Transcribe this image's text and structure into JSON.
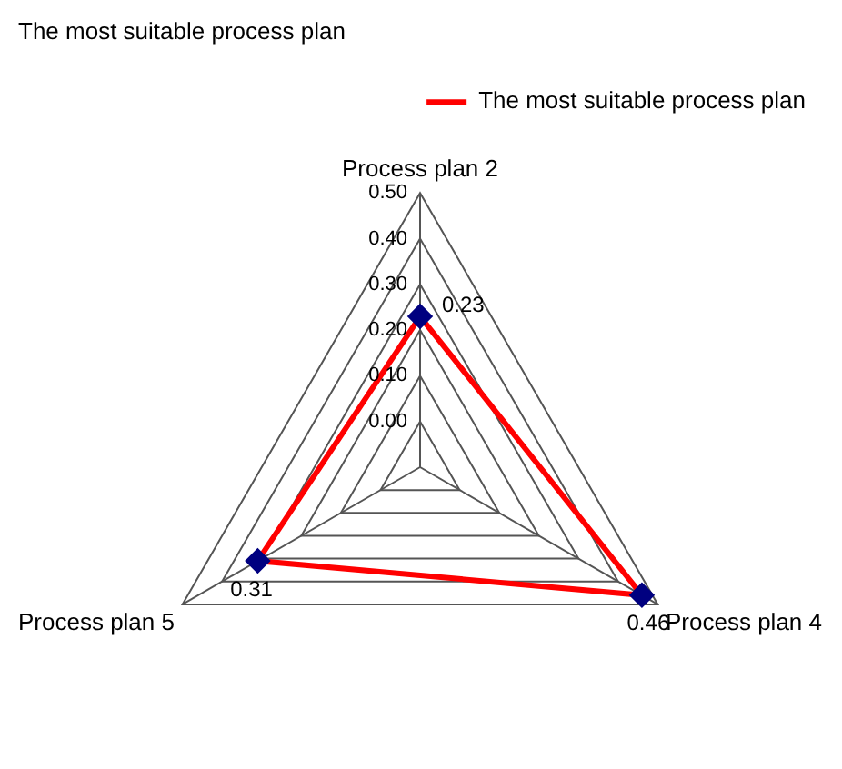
{
  "chart_data": {
    "type": "radar",
    "title": "The most suitable process plan",
    "categories": [
      "Process plan 2",
      "Process plan 4",
      "Process plan 5"
    ],
    "series": [
      {
        "name": "The most suitable process plan",
        "color": "#ff0000",
        "values": [
          0.23,
          0.46,
          0.31
        ]
      }
    ],
    "ylim": [
      -0.1,
      0.5
    ],
    "yticks": [
      {
        "value": 0,
        "label": "0.00"
      },
      {
        "value": 0.1,
        "label": "0.10"
      },
      {
        "value": 0.2,
        "label": "0.20"
      },
      {
        "value": 0.3,
        "label": "0.30"
      },
      {
        "value": 0.4,
        "label": "0.40"
      },
      {
        "value": 0.5,
        "label": "0.50"
      }
    ],
    "grid": true,
    "legend": "top right",
    "marker": "diamond",
    "data_labels": true
  }
}
